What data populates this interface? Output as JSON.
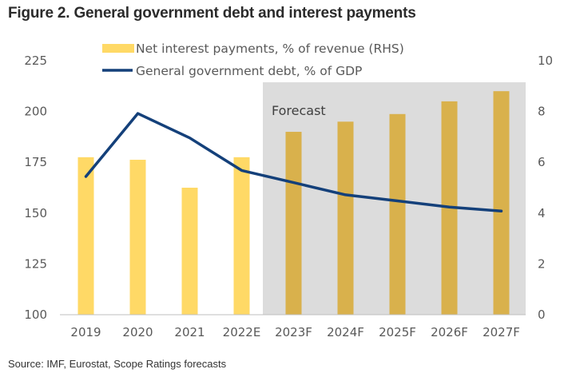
{
  "title": "Figure 2. General government debt and interest payments",
  "source": "Source: IMF, Eurostat, Scope Ratings forecasts",
  "colors": {
    "bar_actual": "#FFD966",
    "bar_forecast": "#D9B14C",
    "line": "#14407A",
    "forecast_shade": "#DCDCDC",
    "text": "#595959"
  },
  "chart_data": {
    "type": "bar+line",
    "title": "Figure 2. General government debt and interest payments",
    "categories": [
      "2019",
      "2020",
      "2021",
      "2022E",
      "2023F",
      "2024F",
      "2025F",
      "2026F",
      "2027F"
    ],
    "forecast_label": "Forecast",
    "forecast_start_index": 4,
    "left_axis": {
      "min": 100,
      "max": 225,
      "ticks": [
        100,
        125,
        150,
        175,
        200,
        225
      ]
    },
    "right_axis": {
      "min": 0,
      "max": 10,
      "ticks": [
        0,
        2,
        4,
        6,
        8,
        10
      ]
    },
    "series": [
      {
        "name": "Net interest payments, % of revenue (RHS)",
        "type": "bar",
        "axis": "right",
        "values": [
          6.2,
          6.1,
          5.0,
          6.2,
          7.2,
          7.6,
          7.9,
          8.4,
          8.8
        ]
      },
      {
        "name": "General government debt, % of GDP",
        "type": "line",
        "axis": "left",
        "values": [
          168,
          199,
          187,
          171,
          165,
          159,
          156,
          153,
          151
        ]
      }
    ]
  }
}
